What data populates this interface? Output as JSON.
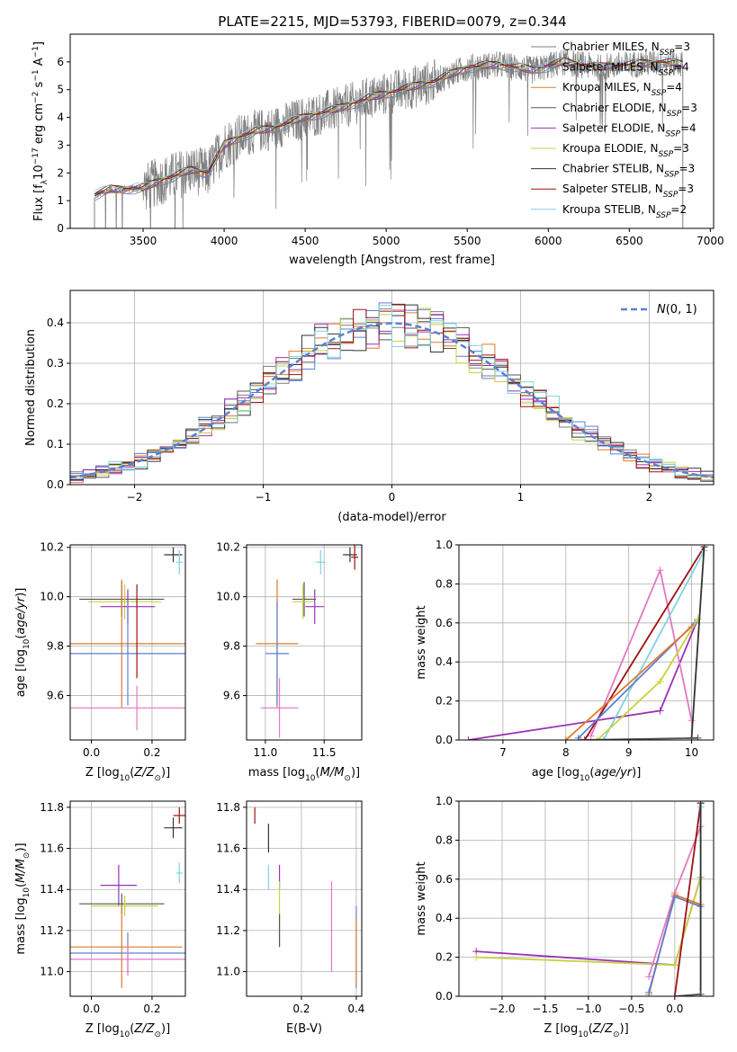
{
  "figure": {
    "title": "PLATE=2215, MJD=53793, FIBERID=0079, z=0.344"
  },
  "colors": {
    "chabrier_miles": "#7f7f7f",
    "salpeter_miles": "#5b7fd6",
    "kroupa_miles": "#e07a2a",
    "chabrier_elodie": "#555555",
    "salpeter_elodie": "#9b30b8",
    "kroupa_elodie": "#c8d040",
    "chabrier_stelib": "#333333",
    "salpeter_stelib": "#a01010",
    "kroupa_stelib": "#7fd3e0",
    "pink": "#e377c2",
    "normal_curve": "#5b7fd6",
    "grid": "#b0b0b0"
  },
  "chart_data": [
    {
      "id": "spectrum",
      "type": "line",
      "title": "",
      "xlabel": "wavelength [Angstrom, rest frame]",
      "ylabel": "Flux [f_λ 10^-17 erg cm^-2 s^-1 A^-1]",
      "xlim": [
        3050,
        7020
      ],
      "ylim": [
        0,
        7
      ],
      "xticks": [
        3500,
        4000,
        4500,
        5000,
        5500,
        6000,
        6500,
        7000
      ],
      "yticks": [
        0,
        1,
        2,
        3,
        4,
        5,
        6
      ],
      "grid": false,
      "legend_position": "top-right",
      "legend": [
        {
          "label": "Chabrier MILES, N",
          "sub": "SSP",
          "tail": "=3",
          "color": "#7f7f7f"
        },
        {
          "label": "Salpeter MILES, N",
          "sub": "SSP",
          "tail": "=4",
          "color": "#5b7fd6"
        },
        {
          "label": "Kroupa MILES, N",
          "sub": "SSP",
          "tail": "=4",
          "color": "#e07a2a"
        },
        {
          "label": "Chabrier ELODIE, N",
          "sub": "SSP",
          "tail": "=3",
          "color": "#555555"
        },
        {
          "label": "Salpeter ELODIE, N",
          "sub": "SSP",
          "tail": "=4",
          "color": "#9b30b8"
        },
        {
          "label": "Kroupa ELODIE, N",
          "sub": "SSP",
          "tail": "=3",
          "color": "#c8d040"
        },
        {
          "label": "Chabrier STELIB, N",
          "sub": "SSP",
          "tail": "=3",
          "color": "#333333"
        },
        {
          "label": "Salpeter STELIB, N",
          "sub": "SSP",
          "tail": "=3",
          "color": "#a01010"
        },
        {
          "label": "Kroupa STELIB, N",
          "sub": "SSP",
          "tail": "=2",
          "color": "#7fd3e0"
        }
      ],
      "continuum": {
        "x": [
          3200,
          3300,
          3500,
          3600,
          3700,
          3800,
          3900,
          4000,
          4100,
          4200,
          4300,
          4500,
          4700,
          4900,
          5100,
          5300,
          5500,
          5700,
          5900,
          6100,
          6300,
          6500,
          6700,
          6830
        ],
        "y": [
          1.2,
          1.4,
          1.45,
          1.7,
          1.9,
          2.1,
          2.0,
          3.0,
          3.3,
          3.5,
          3.6,
          4.0,
          4.3,
          4.7,
          5.0,
          5.3,
          5.8,
          5.9,
          5.7,
          6.0,
          5.8,
          5.9,
          6.0,
          5.9
        ]
      },
      "data_range": [
        3200,
        6830
      ]
    },
    {
      "id": "residuals",
      "type": "line",
      "title": "",
      "xlabel": "(data-model)/error",
      "ylabel": "Normed distribution",
      "xlim": [
        -2.5,
        2.5
      ],
      "ylim": [
        0,
        0.48
      ],
      "xticks": [
        -2,
        -1,
        0,
        1,
        2
      ],
      "yticks": [
        0.0,
        0.1,
        0.2,
        0.3,
        0.4
      ],
      "grid": true,
      "legend_position": "top-right",
      "legend": [
        {
          "label": "N(0,1)",
          "color": "#5b7fd6",
          "style": "dashed"
        }
      ],
      "bin_width": 0.1,
      "hist_count": 9
    },
    {
      "id": "age-vs-z",
      "type": "scatter",
      "xlabel": "Z [log10(Z/Z☉)]",
      "ylabel": "age [log10(age/yr)]",
      "xlim": [
        -0.07,
        0.31
      ],
      "ylim": [
        9.42,
        10.21
      ],
      "xticks": [
        0.0,
        0.2
      ],
      "yticks": [
        9.6,
        9.8,
        10.0,
        10.2
      ],
      "grid": true,
      "points": [
        {
          "x": 0.27,
          "y": 10.17,
          "xerr": 0.03,
          "yerr": 0.03,
          "color": "#333333"
        },
        {
          "x": 0.29,
          "y": 10.14,
          "xerr": 0.01,
          "yerr": 0.05,
          "color": "#7fd3e0"
        },
        {
          "x": 0.1,
          "y": 9.99,
          "xerr": 0.14,
          "yerr": 0.07,
          "color": "#555555"
        },
        {
          "x": 0.11,
          "y": 9.98,
          "xerr": 0.12,
          "yerr": 0.07,
          "color": "#c8d040"
        },
        {
          "x": 0.12,
          "y": 9.96,
          "xerr": 0.09,
          "yerr": 0.07,
          "color": "#9b30b8"
        },
        {
          "x": 0.1,
          "y": 9.81,
          "xerr": 0.29,
          "yerr": 0.26,
          "color": "#e07a2a"
        },
        {
          "x": 0.12,
          "y": 9.77,
          "xerr": 0.29,
          "yerr": 0.21,
          "color": "#5b7fd6"
        },
        {
          "x": 0.15,
          "y": 9.55,
          "xerr": 0.3,
          "yerr": 0.09,
          "color": "#e377c2"
        },
        {
          "x": 0.15,
          "y": 9.86,
          "xerr": 0.0,
          "yerr": 0.19,
          "color": "#a01010"
        }
      ]
    },
    {
      "id": "age-vs-mass",
      "type": "scatter",
      "xlabel": "mass [log10(M/M☉)]",
      "ylabel": "",
      "xlim": [
        10.84,
        11.82
      ],
      "ylim": [
        9.42,
        10.21
      ],
      "xticks": [
        11.0,
        11.5
      ],
      "yticks": [
        9.6,
        9.8,
        10.0,
        10.2
      ],
      "grid": true,
      "points": [
        {
          "x": 11.72,
          "y": 10.17,
          "xerr": 0.06,
          "yerr": 0.03,
          "color": "#333333"
        },
        {
          "x": 11.76,
          "y": 10.16,
          "xerr": 0.03,
          "yerr": 0.05,
          "color": "#a01010"
        },
        {
          "x": 11.47,
          "y": 10.14,
          "xerr": 0.04,
          "yerr": 0.05,
          "color": "#7fd3e0"
        },
        {
          "x": 11.33,
          "y": 9.99,
          "xerr": 0.1,
          "yerr": 0.07,
          "color": "#555555"
        },
        {
          "x": 11.32,
          "y": 9.98,
          "xerr": 0.09,
          "yerr": 0.07,
          "color": "#c8d040"
        },
        {
          "x": 11.42,
          "y": 9.96,
          "xerr": 0.08,
          "yerr": 0.07,
          "color": "#9b30b8"
        },
        {
          "x": 11.1,
          "y": 9.81,
          "xerr": 0.18,
          "yerr": 0.26,
          "color": "#e07a2a"
        },
        {
          "x": 11.1,
          "y": 9.77,
          "xerr": 0.1,
          "yerr": 0.21,
          "color": "#5b7fd6"
        },
        {
          "x": 11.12,
          "y": 9.55,
          "xerr": 0.16,
          "yerr": 0.12,
          "color": "#e377c2"
        }
      ]
    },
    {
      "id": "weight-vs-age",
      "type": "line",
      "xlabel": "age [log10(age/yr)]",
      "ylabel": "mass weight",
      "xlim": [
        6.3,
        10.35
      ],
      "ylim": [
        0,
        1
      ],
      "xticks": [
        7,
        8,
        9,
        10
      ],
      "yticks": [
        0.0,
        0.2,
        0.4,
        0.6,
        0.8,
        1.0
      ],
      "grid": true,
      "series": [
        {
          "color": "#9b30b8",
          "x": [
            6.45,
            9.5,
            10.1
          ],
          "y": [
            0.0,
            0.15,
            0.62
          ]
        },
        {
          "color": "#e377c2",
          "x": [
            8.4,
            9.5,
            10.0
          ],
          "y": [
            0.02,
            0.87,
            0.1
          ]
        },
        {
          "color": "#a01010",
          "x": [
            8.3,
            10.2
          ],
          "y": [
            0.0,
            0.99
          ]
        },
        {
          "color": "#7fd3e0",
          "x": [
            8.6,
            10.2
          ],
          "y": [
            0.0,
            0.97
          ]
        },
        {
          "color": "#5b7fd6",
          "x": [
            8.2,
            10.05
          ],
          "y": [
            0.01,
            0.6
          ]
        },
        {
          "color": "#e07a2a",
          "x": [
            8.0,
            10.0
          ],
          "y": [
            0.0,
            0.58
          ]
        },
        {
          "color": "#c8d040",
          "x": [
            8.5,
            9.5,
            10.1
          ],
          "y": [
            0.0,
            0.3,
            0.62
          ]
        },
        {
          "color": "#333333",
          "x": [
            10.0,
            10.2
          ],
          "y": [
            0.01,
            0.99
          ]
        },
        {
          "color": "#555555",
          "x": [
            8.2,
            10.1
          ],
          "y": [
            0.0,
            0.01
          ]
        }
      ]
    },
    {
      "id": "mass-vs-z",
      "type": "scatter",
      "xlabel": "Z [log10(Z/Z☉)]",
      "ylabel": "mass [log10(M/M☉)]",
      "xlim": [
        -0.07,
        0.31
      ],
      "ylim": [
        10.88,
        11.83
      ],
      "xticks": [
        0.0,
        0.2
      ],
      "yticks": [
        11.0,
        11.2,
        11.4,
        11.6,
        11.8
      ],
      "grid": true,
      "points": [
        {
          "x": 0.29,
          "y": 11.76,
          "xerr": 0.02,
          "yerr": 0.04,
          "color": "#a01010"
        },
        {
          "x": 0.27,
          "y": 11.7,
          "xerr": 0.03,
          "yerr": 0.05,
          "color": "#333333"
        },
        {
          "x": 0.29,
          "y": 11.48,
          "xerr": 0.01,
          "yerr": 0.05,
          "color": "#7fd3e0"
        },
        {
          "x": 0.09,
          "y": 11.42,
          "xerr": 0.06,
          "yerr": 0.1,
          "color": "#9b30b8"
        },
        {
          "x": 0.1,
          "y": 11.33,
          "xerr": 0.14,
          "yerr": 0.05,
          "color": "#555555"
        },
        {
          "x": 0.11,
          "y": 11.32,
          "xerr": 0.11,
          "yerr": 0.05,
          "color": "#c8d040"
        },
        {
          "x": 0.1,
          "y": 11.12,
          "xerr": 0.2,
          "yerr": 0.2,
          "color": "#e07a2a"
        },
        {
          "x": 0.12,
          "y": 11.09,
          "xerr": 0.29,
          "yerr": 0.1,
          "color": "#5b7fd6"
        },
        {
          "x": 0.12,
          "y": 11.06,
          "xerr": 0.28,
          "yerr": 0.08,
          "color": "#e377c2"
        }
      ]
    },
    {
      "id": "mass-vs-ebv",
      "type": "scatter",
      "xlabel": "E(B-V)",
      "ylabel": "",
      "xlim": [
        0.0,
        0.42
      ],
      "ylim": [
        10.88,
        11.83
      ],
      "xticks": [
        0.2,
        0.4
      ],
      "yticks": [
        11.0,
        11.2,
        11.4,
        11.6,
        11.8
      ],
      "grid": true,
      "points": [
        {
          "x": 0.03,
          "y": 11.76,
          "xerr": 0,
          "yerr": 0.04,
          "color": "#a01010"
        },
        {
          "x": 0.08,
          "y": 11.65,
          "xerr": 0,
          "yerr": 0.07,
          "color": "#333333"
        },
        {
          "x": 0.08,
          "y": 11.46,
          "xerr": 0,
          "yerr": 0.06,
          "color": "#7fd3e0"
        },
        {
          "x": 0.12,
          "y": 11.46,
          "xerr": 0,
          "yerr": 0.06,
          "color": "#9b30b8"
        },
        {
          "x": 0.12,
          "y": 11.28,
          "xerr": 0,
          "yerr": 0.16,
          "color": "#c8d040"
        },
        {
          "x": 0.12,
          "y": 11.2,
          "xerr": 0,
          "yerr": 0.08,
          "color": "#555555"
        },
        {
          "x": 0.31,
          "y": 11.22,
          "xerr": 0,
          "yerr": 0.22,
          "color": "#e377c2"
        },
        {
          "x": 0.4,
          "y": 11.12,
          "xerr": 0,
          "yerr": 0.2,
          "color": "#5b7fd6"
        },
        {
          "x": 0.4,
          "y": 11.1,
          "xerr": 0,
          "yerr": 0.16,
          "color": "#e07a2a"
        }
      ]
    },
    {
      "id": "weight-vs-z",
      "type": "line",
      "xlabel": "Z [log10(Z/Z☉)]",
      "ylabel": "mass weight",
      "xlim": [
        -2.5,
        0.45
      ],
      "ylim": [
        0,
        1
      ],
      "xticks": [
        -2.0,
        -1.5,
        -1.0,
        -0.5,
        0.0
      ],
      "yticks": [
        0.0,
        0.2,
        0.4,
        0.6,
        0.8,
        1.0
      ],
      "grid": true,
      "series": [
        {
          "color": "#9b30b8",
          "x": [
            -2.3,
            0.0,
            0.3
          ],
          "y": [
            0.23,
            0.16,
            0.61
          ]
        },
        {
          "color": "#c8d040",
          "x": [
            -2.3,
            0.0,
            0.3
          ],
          "y": [
            0.2,
            0.16,
            0.61
          ]
        },
        {
          "color": "#e377c2",
          "x": [
            -0.3,
            0.0,
            0.3
          ],
          "y": [
            0.1,
            0.53,
            0.87
          ]
        },
        {
          "color": "#e07a2a",
          "x": [
            -0.3,
            0.0,
            0.3
          ],
          "y": [
            0.01,
            0.52,
            0.47
          ]
        },
        {
          "color": "#5b7fd6",
          "x": [
            -0.3,
            0.0,
            0.3
          ],
          "y": [
            0.02,
            0.51,
            0.46
          ]
        },
        {
          "color": "#a01010",
          "x": [
            0.0,
            0.3
          ],
          "y": [
            0.0,
            0.99
          ]
        },
        {
          "color": "#7fd3e0",
          "x": [
            0.3,
            0.3
          ],
          "y": [
            0.01,
            0.97
          ]
        },
        {
          "color": "#333333",
          "x": [
            0.3,
            0.3
          ],
          "y": [
            0.0,
            0.99
          ]
        },
        {
          "color": "#555555",
          "x": [
            0.0,
            0.3
          ],
          "y": [
            0.0,
            0.01
          ]
        }
      ]
    }
  ]
}
